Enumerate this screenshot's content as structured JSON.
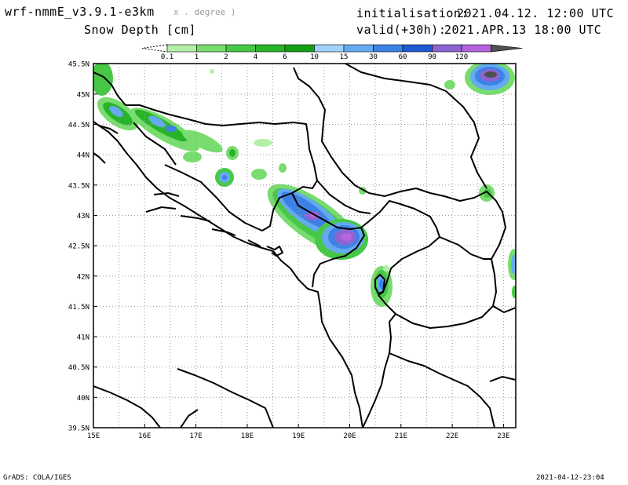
{
  "header": {
    "model": "wrf-nmmE_v3.9.1-e3km",
    "projection_note": "x . degree )",
    "field": "Snow Depth [cm]",
    "init_label": "initialisation:",
    "init_value": "2021.04.12.  12:00 UTC",
    "valid_label": "valid(+30h):",
    "valid_value": "2021.APR.13  18:00 UTC"
  },
  "colorbar": {
    "levels": [
      "0.1",
      "1",
      "2",
      "4",
      "6",
      "10",
      "15",
      "30",
      "60",
      "90",
      "120"
    ],
    "colors": [
      "#b4f0a8",
      "#78dc6e",
      "#46c846",
      "#28b428",
      "#14a014",
      "#a0d2fa",
      "#64aaf0",
      "#3c82e6",
      "#1e5ad2",
      "#8c64d2",
      "#b464dc",
      "#505050"
    ]
  },
  "map": {
    "lat_labels": [
      "45.5N",
      "45N",
      "44.5N",
      "44N",
      "43.5N",
      "43N",
      "42.5N",
      "42N",
      "41.5N",
      "41N",
      "40.5N",
      "40N",
      "39.5N"
    ],
    "lon_labels": [
      "15E",
      "16E",
      "17E",
      "18E",
      "19E",
      "20E",
      "21E",
      "22E",
      "23E"
    ]
  },
  "footer": {
    "credit": "GrADS: COLA/IGES",
    "timestamp": "2021-04-12-23:04"
  }
}
